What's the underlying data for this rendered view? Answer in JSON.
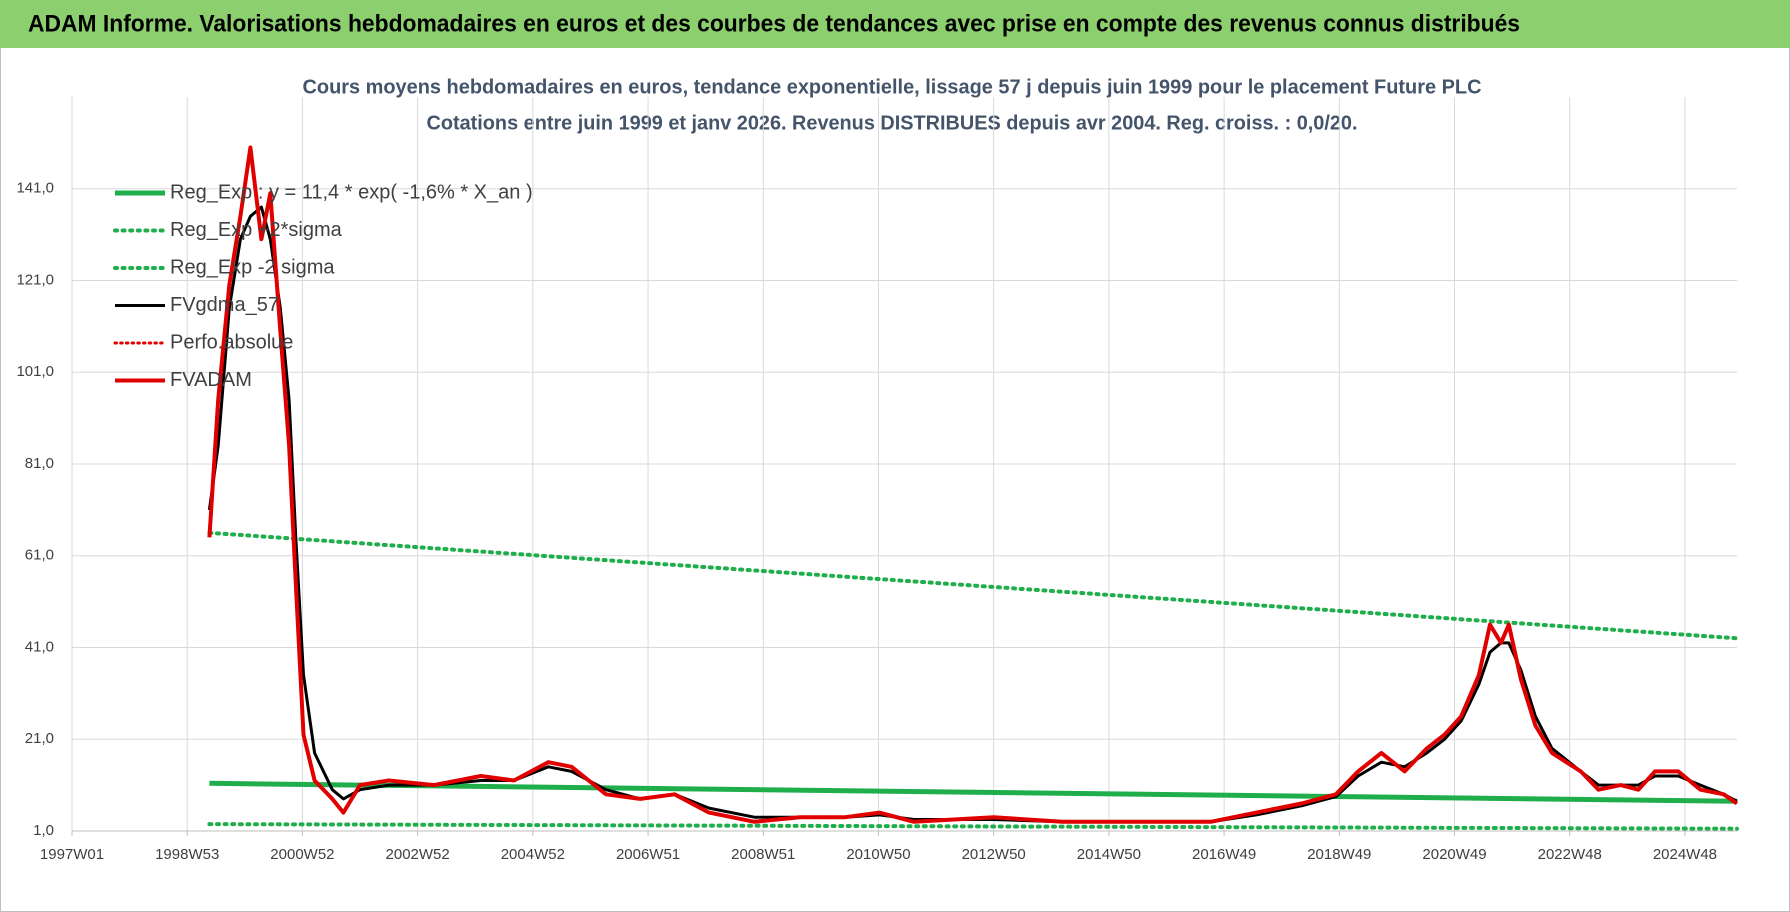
{
  "header": {
    "title": "ADAM Informe. Valorisations hebdomadaires en euros et des courbes de tendances avec prise en compte des revenus connus distribués"
  },
  "chart_data": {
    "type": "line",
    "title": "Cours moyens hebdomadaires en euros, tendance exponentielle, lissage 57 j depuis juin 1999 pour le placement Future PLC",
    "subtitle": "Cotations entre juin 1999 et janv 2026.  Revenus DISTRIBUES depuis avr 2004. Reg. croiss. : 0,0/20.",
    "x": [
      124,
      132,
      142,
      152,
      161,
      171,
      179,
      188,
      196,
      202,
      209,
      219,
      235,
      245,
      260,
      286,
      327,
      369,
      399,
      430,
      451,
      482,
      513,
      544,
      575,
      616,
      657,
      698,
      729,
      760,
      832,
      894,
      966,
      1028,
      1069,
      1110,
      1141,
      1161,
      1182,
      1203,
      1223,
      1239,
      1254,
      1270,
      1280,
      1290,
      1297,
      1308,
      1321,
      1336,
      1362,
      1378,
      1398,
      1414,
      1429,
      1450,
      1470,
      1491,
      1503
    ],
    "series": [
      {
        "name": "Reg_Exp : y = 11,4 * exp( -1,6% *  X_an )",
        "color": "#1fae4b",
        "style": "solid",
        "width": 5,
        "x": [
          124,
          1503
        ],
        "values": [
          11.4,
          7.5
        ]
      },
      {
        "name": "Reg_Exp +2*sigma",
        "color": "#1fae4b",
        "style": "dotted",
        "width": 4,
        "x": [
          124,
          1503
        ],
        "values": [
          66,
          43
        ]
      },
      {
        "name": "Reg_Exp -2 sigma",
        "color": "#1fae4b",
        "style": "dotted",
        "width": 4,
        "x": [
          124,
          1503
        ],
        "values": [
          2.5,
          1.5
        ]
      },
      {
        "name": "FVgdma_57",
        "color": "#000000",
        "style": "solid",
        "width": 3,
        "values": [
          71,
          85,
          115,
          130,
          135,
          137,
          130,
          115,
          95,
          65,
          35,
          18,
          10,
          8,
          10,
          11,
          11,
          12,
          12,
          15,
          14,
          10,
          8,
          9,
          6,
          4,
          4,
          4,
          4.5,
          3.5,
          3.5,
          3,
          3,
          3,
          4.5,
          6.5,
          8.5,
          13,
          16,
          15,
          18,
          21,
          25,
          33,
          40,
          42,
          42,
          36,
          26,
          19,
          14,
          11,
          11,
          11,
          13,
          13,
          11,
          9,
          7.5
        ]
      },
      {
        "name": "Perfo.absolue",
        "color": "#e00000",
        "style": "dotted",
        "width": 3,
        "x": [],
        "values": []
      },
      {
        "name": "FVADAM",
        "color": "#e00000",
        "style": "solid",
        "width": 4,
        "values": [
          65,
          95,
          120,
          135,
          150,
          130,
          140,
          110,
          85,
          55,
          22,
          12,
          8,
          5,
          11,
          12,
          11,
          13,
          12,
          16,
          15,
          9,
          8,
          9,
          5,
          3,
          4,
          4,
          5,
          3,
          4,
          3,
          3,
          3,
          5,
          7,
          9,
          14,
          18,
          14,
          19,
          22,
          26,
          35,
          46,
          42,
          46,
          34,
          24,
          18,
          14,
          10,
          11,
          10,
          14,
          14,
          10,
          9,
          7
        ]
      }
    ],
    "xlim": [
      0,
      1503
    ],
    "xticks": [
      {
        "value": 0,
        "label": "1997W01"
      },
      {
        "value": 104,
        "label": "1998W53"
      },
      {
        "value": 208,
        "label": "2000W52"
      },
      {
        "value": 312,
        "label": "2002W52"
      },
      {
        "value": 416,
        "label": "2004W52"
      },
      {
        "value": 520,
        "label": "2006W51"
      },
      {
        "value": 624,
        "label": "2008W51"
      },
      {
        "value": 728,
        "label": "2010W50"
      },
      {
        "value": 832,
        "label": "2012W50"
      },
      {
        "value": 936,
        "label": "2014W50"
      },
      {
        "value": 1040,
        "label": "2016W49"
      },
      {
        "value": 1144,
        "label": "2018W49"
      },
      {
        "value": 1248,
        "label": "2020W49"
      },
      {
        "value": 1352,
        "label": "2022W48"
      },
      {
        "value": 1456,
        "label": "2024W48"
      }
    ],
    "ylim": [
      1,
      161
    ],
    "yticks": [
      {
        "value": 1,
        "label": "1,0"
      },
      {
        "value": 21,
        "label": "21,0"
      },
      {
        "value": 41,
        "label": "41,0"
      },
      {
        "value": 61,
        "label": "61,0"
      },
      {
        "value": 81,
        "label": "81,0"
      },
      {
        "value": 101,
        "label": "101,0"
      },
      {
        "value": 121,
        "label": "121,0"
      },
      {
        "value": 141,
        "label": "141,0"
      }
    ],
    "grid": true,
    "legend": "upper-left"
  }
}
